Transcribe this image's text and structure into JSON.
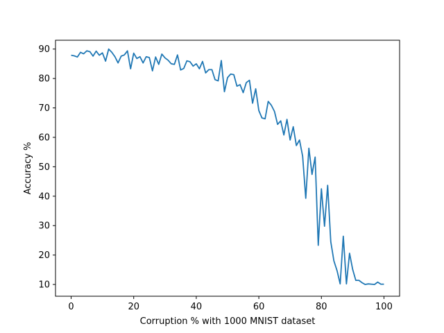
{
  "chart_data": {
    "type": "line",
    "title": "",
    "xlabel": "Corruption % with 1000 MNIST dataset",
    "ylabel": "Accuracy %",
    "xlim": [
      -5,
      105
    ],
    "ylim": [
      6.0,
      93.0
    ],
    "xticks": [
      0,
      20,
      40,
      60,
      80,
      100
    ],
    "yticks": [
      10,
      20,
      30,
      40,
      50,
      60,
      70,
      80,
      90
    ],
    "grid": false,
    "legend": "none",
    "line_color": "#1f77b4",
    "series": [
      {
        "x": [
          0,
          1,
          2,
          3,
          4,
          5,
          6,
          7,
          8,
          9,
          10,
          11,
          12,
          13,
          14,
          15,
          16,
          17,
          18,
          19,
          20,
          21,
          22,
          23,
          24,
          25,
          26,
          27,
          28,
          29,
          30,
          31,
          32,
          33,
          34,
          35,
          36,
          37,
          38,
          39,
          40,
          41,
          42,
          43,
          44,
          45,
          46,
          47,
          48,
          49,
          50,
          51,
          52,
          53,
          54,
          55,
          56,
          57,
          58,
          59,
          60,
          61,
          62,
          63,
          64,
          65,
          66,
          67,
          68,
          69,
          70,
          71,
          72,
          73,
          74,
          75,
          76,
          77,
          78,
          79,
          80,
          81,
          82,
          83,
          84,
          85,
          86,
          87,
          88,
          89,
          90,
          91,
          92,
          93,
          94,
          95,
          96,
          97,
          98,
          99,
          100
        ],
        "y": [
          87.9,
          87.7,
          87.3,
          88.9,
          88.4,
          89.4,
          89.1,
          87.6,
          89.3,
          87.9,
          88.7,
          85.9,
          90.0,
          88.9,
          87.4,
          85.3,
          87.6,
          88.0,
          89.4,
          83.3,
          88.6,
          86.8,
          87.4,
          85.3,
          87.4,
          87.1,
          82.6,
          87.3,
          84.8,
          88.3,
          87.0,
          86.2,
          85.0,
          84.8,
          88.0,
          82.9,
          83.4,
          86.0,
          85.7,
          84.2,
          85.0,
          83.3,
          85.8,
          81.9,
          83.0,
          83.0,
          79.6,
          79.2,
          86.1,
          75.5,
          80.3,
          81.5,
          81.3,
          77.4,
          77.9,
          75.2,
          78.6,
          79.4,
          71.6,
          76.5,
          69.1,
          66.6,
          66.3,
          72.2,
          70.9,
          68.8,
          64.4,
          65.6,
          60.8,
          66.1,
          59.1,
          63.6,
          57.2,
          59.1,
          53.6,
          39.3,
          56.3,
          47.4,
          53.3,
          23.3,
          42.5,
          29.8,
          43.7,
          24.5,
          18.0,
          14.7,
          10.2,
          26.4,
          10.2,
          20.6,
          15.1,
          11.4,
          11.4,
          10.6,
          10.0,
          10.2,
          10.1,
          10.0,
          10.8,
          10.1,
          10.1
        ]
      }
    ]
  }
}
